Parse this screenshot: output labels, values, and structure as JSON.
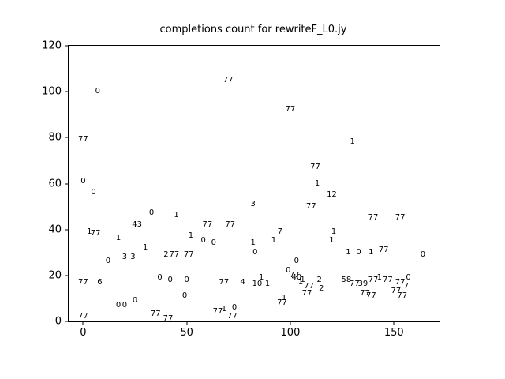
{
  "figure": {
    "background": "#ffffff",
    "text_color": "#000000"
  },
  "chart_data": {
    "type": "scatter",
    "title": "completions count for rewriteF_L0.jy",
    "xlabel": "",
    "ylabel": "",
    "xlim": [
      -7,
      172
    ],
    "ylim": [
      0,
      120
    ],
    "xticks": [
      0,
      50,
      100,
      150
    ],
    "yticks": [
      0,
      20,
      40,
      60,
      80,
      100,
      120
    ],
    "grid": false,
    "legend": "none",
    "marker": "text-label",
    "points": [
      [
        0,
        79,
        "77"
      ],
      [
        0,
        61,
        "0"
      ],
      [
        0,
        17,
        "77"
      ],
      [
        0,
        2,
        "77"
      ],
      [
        3,
        39,
        "1"
      ],
      [
        5,
        56,
        "0"
      ],
      [
        6,
        38,
        "77"
      ],
      [
        7,
        100,
        "0"
      ],
      [
        8,
        17,
        "6"
      ],
      [
        12,
        26,
        "0"
      ],
      [
        17,
        36,
        "1"
      ],
      [
        17,
        7,
        "0"
      ],
      [
        20,
        28,
        "3"
      ],
      [
        20,
        7,
        "0"
      ],
      [
        24,
        28,
        "3"
      ],
      [
        25,
        9,
        "0"
      ],
      [
        26,
        42,
        "43"
      ],
      [
        30,
        32,
        "1"
      ],
      [
        33,
        47,
        "0"
      ],
      [
        35,
        3,
        "77"
      ],
      [
        37,
        19,
        "0"
      ],
      [
        40,
        29,
        "2"
      ],
      [
        41,
        1,
        "77"
      ],
      [
        42,
        18,
        "0"
      ],
      [
        44,
        29,
        "77"
      ],
      [
        45,
        46,
        "1"
      ],
      [
        49,
        11,
        "0"
      ],
      [
        50,
        18,
        "0"
      ],
      [
        51,
        29,
        "77"
      ],
      [
        52,
        37,
        "1"
      ],
      [
        58,
        35,
        "0"
      ],
      [
        60,
        42,
        "77"
      ],
      [
        63,
        34,
        "0"
      ],
      [
        65,
        4,
        "77"
      ],
      [
        68,
        17,
        "77"
      ],
      [
        68,
        5,
        "1"
      ],
      [
        70,
        105,
        "77"
      ],
      [
        71,
        42,
        "77"
      ],
      [
        72,
        2,
        "77"
      ],
      [
        73,
        6,
        "0"
      ],
      [
        77,
        17,
        "4"
      ],
      [
        82,
        51,
        "3"
      ],
      [
        82,
        34,
        "1"
      ],
      [
        83,
        30,
        "0"
      ],
      [
        84,
        16,
        "10"
      ],
      [
        86,
        19,
        "1"
      ],
      [
        89,
        16,
        "1"
      ],
      [
        92,
        35,
        "1"
      ],
      [
        95,
        39,
        "7"
      ],
      [
        96,
        8,
        "77"
      ],
      [
        97,
        10,
        "1"
      ],
      [
        99,
        22,
        "0"
      ],
      [
        100,
        92,
        "77"
      ],
      [
        102,
        20,
        "77"
      ],
      [
        103,
        26,
        "0"
      ],
      [
        103,
        19,
        "40"
      ],
      [
        105,
        17,
        "1"
      ],
      [
        106,
        18,
        "1"
      ],
      [
        108,
        12,
        "77"
      ],
      [
        109,
        15,
        "77"
      ],
      [
        110,
        50,
        "77"
      ],
      [
        112,
        67,
        "77"
      ],
      [
        113,
        60,
        "1"
      ],
      [
        114,
        18,
        "2"
      ],
      [
        115,
        14,
        "2"
      ],
      [
        120,
        55,
        "12"
      ],
      [
        120,
        35,
        "1"
      ],
      [
        121,
        39,
        "1"
      ],
      [
        127,
        18,
        "58"
      ],
      [
        128,
        30,
        "1"
      ],
      [
        130,
        78,
        "1"
      ],
      [
        131,
        16,
        "77"
      ],
      [
        133,
        30,
        "0"
      ],
      [
        135,
        16,
        "39"
      ],
      [
        136,
        12,
        "77"
      ],
      [
        139,
        30,
        "1"
      ],
      [
        139,
        11,
        "77"
      ],
      [
        140,
        45,
        "77"
      ],
      [
        140,
        18,
        "77"
      ],
      [
        143,
        19,
        "1"
      ],
      [
        145,
        31,
        "77"
      ],
      [
        147,
        18,
        "77"
      ],
      [
        151,
        13,
        "77"
      ],
      [
        153,
        45,
        "77"
      ],
      [
        153,
        17,
        "77"
      ],
      [
        154,
        11,
        "77"
      ],
      [
        156,
        15,
        "7"
      ],
      [
        157,
        19,
        "0"
      ],
      [
        164,
        29,
        "0"
      ]
    ]
  }
}
